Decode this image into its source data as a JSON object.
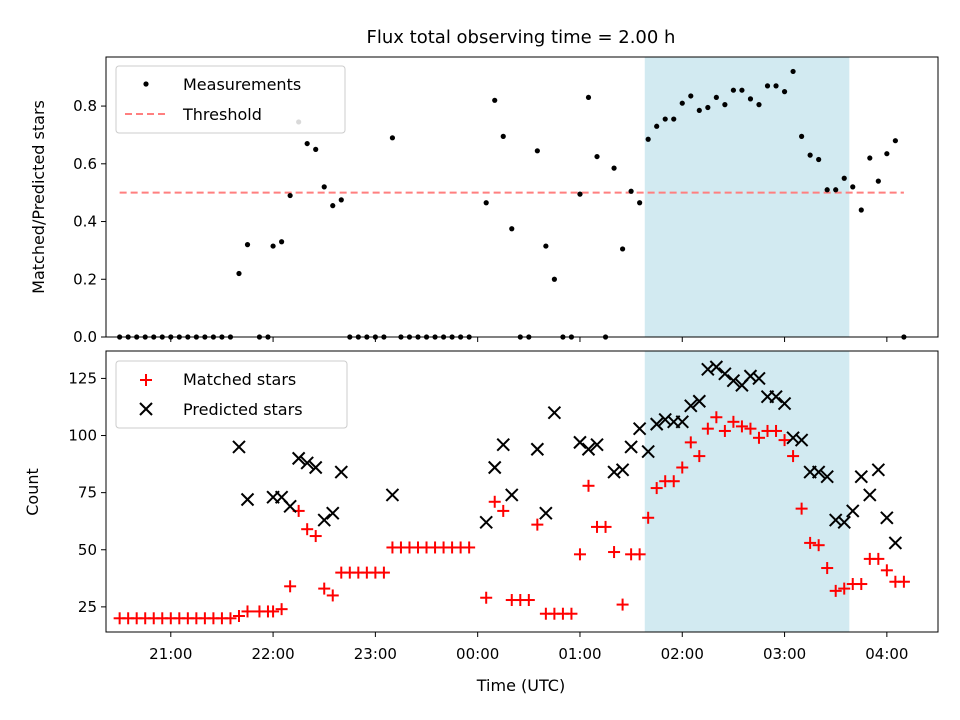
{
  "chart_data": [
    {
      "type": "scatter",
      "title": "Flux total observing time = 2.00 h",
      "xlabel": "",
      "ylabel": "Matched/Predicted stars",
      "xlim": [
        "20:22",
        "04:30"
      ],
      "ylim": [
        0,
        0.97
      ],
      "yticks": [
        0.0,
        0.2,
        0.4,
        0.6,
        0.8
      ],
      "ytick_labels": [
        "0.0",
        "0.2",
        "0.4",
        "0.6",
        "0.8"
      ],
      "highlight_span": [
        "01:38",
        "03:38"
      ],
      "legend": {
        "placement": "upper-left",
        "entries": [
          "Measurements",
          "Threshold"
        ]
      },
      "colors": {
        "measurements": "#000000",
        "threshold": "#ff7f7f",
        "span": "#add8e6"
      },
      "threshold": {
        "value": 0.5,
        "x_start": "20:30",
        "x_end": "04:10"
      },
      "series": [
        {
          "name": "Measurements",
          "points": [
            [
              "20:30",
              0.0
            ],
            [
              "20:35",
              0.0
            ],
            [
              "20:40",
              0.0
            ],
            [
              "20:45",
              0.0
            ],
            [
              "20:50",
              0.0
            ],
            [
              "20:55",
              0.0
            ],
            [
              "21:00",
              0.0
            ],
            [
              "21:05",
              0.0
            ],
            [
              "21:10",
              0.0
            ],
            [
              "21:15",
              0.0
            ],
            [
              "21:20",
              0.0
            ],
            [
              "21:25",
              0.0
            ],
            [
              "21:30",
              0.0
            ],
            [
              "21:35",
              0.0
            ],
            [
              "21:40",
              0.22
            ],
            [
              "21:45",
              0.32
            ],
            [
              "21:52",
              0.0
            ],
            [
              "21:57",
              0.0
            ],
            [
              "22:00",
              0.315
            ],
            [
              "22:05",
              0.33
            ],
            [
              "22:10",
              0.49
            ],
            [
              "22:15",
              0.745
            ],
            [
              "22:20",
              0.67
            ],
            [
              "22:25",
              0.65
            ],
            [
              "22:30",
              0.52
            ],
            [
              "22:35",
              0.455
            ],
            [
              "22:40",
              0.475
            ],
            [
              "22:45",
              0.0
            ],
            [
              "22:50",
              0.0
            ],
            [
              "22:55",
              0.0
            ],
            [
              "23:00",
              0.0
            ],
            [
              "23:05",
              0.0
            ],
            [
              "23:10",
              0.69
            ],
            [
              "23:15",
              0.0
            ],
            [
              "23:20",
              0.0
            ],
            [
              "23:25",
              0.0
            ],
            [
              "23:30",
              0.0
            ],
            [
              "23:35",
              0.0
            ],
            [
              "23:40",
              0.0
            ],
            [
              "23:45",
              0.0
            ],
            [
              "23:50",
              0.0
            ],
            [
              "23:55",
              0.0
            ],
            [
              "00:05",
              0.465
            ],
            [
              "00:10",
              0.82
            ],
            [
              "00:15",
              0.695
            ],
            [
              "00:20",
              0.375
            ],
            [
              "00:25",
              0.0
            ],
            [
              "00:30",
              0.0
            ],
            [
              "00:35",
              0.645
            ],
            [
              "00:40",
              0.315
            ],
            [
              "00:45",
              0.2
            ],
            [
              "00:50",
              0.0
            ],
            [
              "00:55",
              0.0
            ],
            [
              "01:00",
              0.495
            ],
            [
              "01:05",
              0.83
            ],
            [
              "01:10",
              0.625
            ],
            [
              "01:15",
              0.0
            ],
            [
              "01:20",
              0.585
            ],
            [
              "01:25",
              0.305
            ],
            [
              "01:30",
              0.505
            ],
            [
              "01:35",
              0.465
            ],
            [
              "01:40",
              0.685
            ],
            [
              "01:45",
              0.73
            ],
            [
              "01:50",
              0.755
            ],
            [
              "01:55",
              0.755
            ],
            [
              "02:00",
              0.81
            ],
            [
              "02:05",
              0.835
            ],
            [
              "02:10",
              0.785
            ],
            [
              "02:15",
              0.795
            ],
            [
              "02:20",
              0.83
            ],
            [
              "02:25",
              0.805
            ],
            [
              "02:30",
              0.855
            ],
            [
              "02:35",
              0.855
            ],
            [
              "02:40",
              0.825
            ],
            [
              "02:45",
              0.805
            ],
            [
              "02:50",
              0.87
            ],
            [
              "02:55",
              0.87
            ],
            [
              "03:00",
              0.85
            ],
            [
              "03:05",
              0.92
            ],
            [
              "03:10",
              0.695
            ],
            [
              "03:15",
              0.63
            ],
            [
              "03:20",
              0.615
            ],
            [
              "03:25",
              0.51
            ],
            [
              "03:30",
              0.51
            ],
            [
              "03:35",
              0.55
            ],
            [
              "03:40",
              0.52
            ],
            [
              "03:45",
              0.44
            ],
            [
              "03:50",
              0.62
            ],
            [
              "03:55",
              0.54
            ],
            [
              "04:00",
              0.635
            ],
            [
              "04:05",
              0.68
            ],
            [
              "04:10",
              0.0
            ]
          ]
        }
      ]
    },
    {
      "type": "scatter",
      "title": "",
      "xlabel": "Time (UTC)",
      "ylabel": "Count",
      "xlim": [
        "20:22",
        "04:30"
      ],
      "ylim": [
        14,
        137
      ],
      "xticks": [
        "21:00",
        "22:00",
        "23:00",
        "00:00",
        "01:00",
        "02:00",
        "03:00",
        "04:00"
      ],
      "yticks": [
        25,
        50,
        75,
        100,
        125
      ],
      "ytick_labels": [
        "25",
        "50",
        "75",
        "100",
        "125"
      ],
      "highlight_span": [
        "01:38",
        "03:38"
      ],
      "legend": {
        "placement": "upper-left",
        "entries": [
          "Matched stars",
          "Predicted stars"
        ]
      },
      "colors": {
        "matched": "#ff0000",
        "predicted": "#000000",
        "span": "#add8e6"
      },
      "series": [
        {
          "name": "Matched stars",
          "marker": "+",
          "points": [
            [
              "20:30",
              20
            ],
            [
              "20:35",
              20
            ],
            [
              "20:40",
              20
            ],
            [
              "20:45",
              20
            ],
            [
              "20:50",
              20
            ],
            [
              "20:55",
              20
            ],
            [
              "21:00",
              20
            ],
            [
              "21:05",
              20
            ],
            [
              "21:10",
              20
            ],
            [
              "21:15",
              20
            ],
            [
              "21:20",
              20
            ],
            [
              "21:25",
              20
            ],
            [
              "21:30",
              20
            ],
            [
              "21:35",
              20
            ],
            [
              "21:40",
              21
            ],
            [
              "21:45",
              23
            ],
            [
              "21:52",
              23
            ],
            [
              "21:57",
              23
            ],
            [
              "22:00",
              23
            ],
            [
              "22:05",
              24
            ],
            [
              "22:10",
              34
            ],
            [
              "22:15",
              67
            ],
            [
              "22:20",
              59
            ],
            [
              "22:25",
              56
            ],
            [
              "22:30",
              33
            ],
            [
              "22:35",
              30
            ],
            [
              "22:40",
              40
            ],
            [
              "22:45",
              40
            ],
            [
              "22:50",
              40
            ],
            [
              "22:55",
              40
            ],
            [
              "23:00",
              40
            ],
            [
              "23:05",
              40
            ],
            [
              "23:10",
              51
            ],
            [
              "23:15",
              51
            ],
            [
              "23:20",
              51
            ],
            [
              "23:25",
              51
            ],
            [
              "23:30",
              51
            ],
            [
              "23:35",
              51
            ],
            [
              "23:40",
              51
            ],
            [
              "23:45",
              51
            ],
            [
              "23:50",
              51
            ],
            [
              "23:55",
              51
            ],
            [
              "00:05",
              29
            ],
            [
              "00:10",
              71
            ],
            [
              "00:15",
              67
            ],
            [
              "00:20",
              28
            ],
            [
              "00:25",
              28
            ],
            [
              "00:30",
              28
            ],
            [
              "00:35",
              61
            ],
            [
              "00:40",
              22
            ],
            [
              "00:45",
              22
            ],
            [
              "00:50",
              22
            ],
            [
              "00:55",
              22
            ],
            [
              "01:00",
              48
            ],
            [
              "01:05",
              78
            ],
            [
              "01:10",
              60
            ],
            [
              "01:15",
              60
            ],
            [
              "01:20",
              49
            ],
            [
              "01:25",
              26
            ],
            [
              "01:30",
              48
            ],
            [
              "01:35",
              48
            ],
            [
              "01:40",
              64
            ],
            [
              "01:45",
              77
            ],
            [
              "01:50",
              80
            ],
            [
              "01:55",
              80
            ],
            [
              "02:00",
              86
            ],
            [
              "02:05",
              97
            ],
            [
              "02:10",
              91
            ],
            [
              "02:15",
              103
            ],
            [
              "02:20",
              108
            ],
            [
              "02:25",
              102
            ],
            [
              "02:30",
              106
            ],
            [
              "02:35",
              104
            ],
            [
              "02:40",
              103
            ],
            [
              "02:45",
              99
            ],
            [
              "02:50",
              102
            ],
            [
              "02:55",
              102
            ],
            [
              "03:00",
              98
            ],
            [
              "03:05",
              91
            ],
            [
              "03:10",
              68
            ],
            [
              "03:15",
              53
            ],
            [
              "03:20",
              52
            ],
            [
              "03:25",
              42
            ],
            [
              "03:30",
              32
            ],
            [
              "03:35",
              33
            ],
            [
              "03:40",
              35
            ],
            [
              "03:45",
              35
            ],
            [
              "03:50",
              46
            ],
            [
              "03:55",
              46
            ],
            [
              "04:00",
              41
            ],
            [
              "04:05",
              36
            ],
            [
              "04:10",
              36
            ]
          ]
        },
        {
          "name": "Predicted stars",
          "marker": "x",
          "points": [
            [
              "21:40",
              95
            ],
            [
              "21:45",
              72
            ],
            [
              "22:00",
              73
            ],
            [
              "22:05",
              73
            ],
            [
              "22:10",
              69
            ],
            [
              "22:15",
              90
            ],
            [
              "22:20",
              88
            ],
            [
              "22:25",
              86
            ],
            [
              "22:30",
              63
            ],
            [
              "22:35",
              66
            ],
            [
              "22:40",
              84
            ],
            [
              "23:10",
              74
            ],
            [
              "00:05",
              62
            ],
            [
              "00:10",
              86
            ],
            [
              "00:15",
              96
            ],
            [
              "00:20",
              74
            ],
            [
              "00:35",
              94
            ],
            [
              "00:40",
              66
            ],
            [
              "00:45",
              110
            ],
            [
              "01:00",
              97
            ],
            [
              "01:05",
              94
            ],
            [
              "01:10",
              96
            ],
            [
              "01:20",
              84
            ],
            [
              "01:25",
              85
            ],
            [
              "01:30",
              95
            ],
            [
              "01:35",
              103
            ],
            [
              "01:40",
              93
            ],
            [
              "01:45",
              105
            ],
            [
              "01:50",
              107
            ],
            [
              "01:55",
              106
            ],
            [
              "02:00",
              106
            ],
            [
              "02:05",
              113
            ],
            [
              "02:10",
              115
            ],
            [
              "02:15",
              129
            ],
            [
              "02:20",
              130
            ],
            [
              "02:25",
              127
            ],
            [
              "02:30",
              124
            ],
            [
              "02:35",
              122
            ],
            [
              "02:40",
              126
            ],
            [
              "02:45",
              125
            ],
            [
              "02:50",
              117
            ],
            [
              "02:55",
              117
            ],
            [
              "03:00",
              114
            ],
            [
              "03:05",
              99
            ],
            [
              "03:10",
              98
            ],
            [
              "03:15",
              84
            ],
            [
              "03:20",
              84
            ],
            [
              "03:25",
              82
            ],
            [
              "03:30",
              63
            ],
            [
              "03:35",
              62
            ],
            [
              "03:40",
              67
            ],
            [
              "03:45",
              82
            ],
            [
              "03:50",
              74
            ],
            [
              "03:55",
              85
            ],
            [
              "04:00",
              64
            ],
            [
              "04:05",
              53
            ]
          ]
        }
      ]
    }
  ]
}
